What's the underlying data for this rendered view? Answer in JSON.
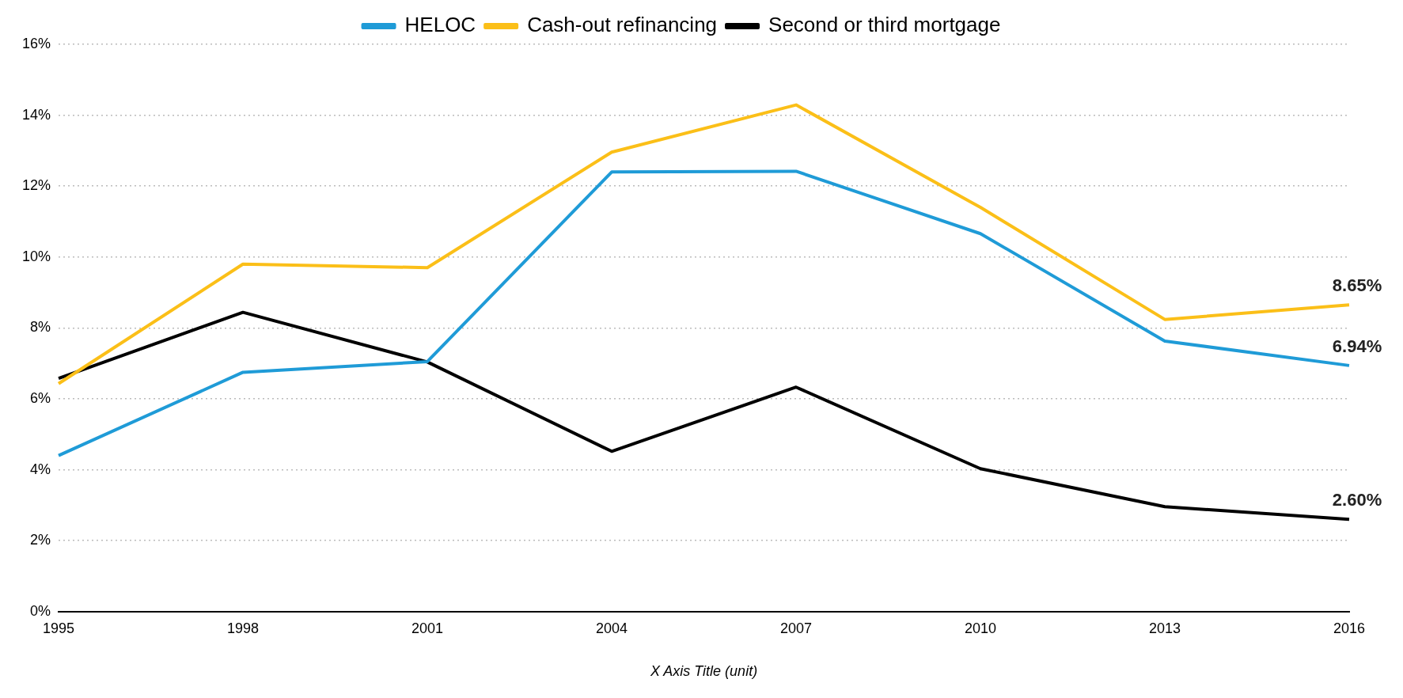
{
  "chart_data": {
    "type": "line",
    "xlabel": "X Axis Title (unit)",
    "categories": [
      "1995",
      "1998",
      "2001",
      "2004",
      "2007",
      "2010",
      "2013",
      "2016"
    ],
    "series": [
      {
        "name": "HELOC",
        "color": "#1f9bd7",
        "values": [
          4.4,
          6.75,
          7.05,
          12.4,
          12.42,
          10.66,
          7.63,
          6.94
        ],
        "value_labels": [
          null,
          null,
          null,
          null,
          null,
          null,
          null,
          "6.94%"
        ]
      },
      {
        "name": "Cash-out refinancing",
        "color": "#fbbf18",
        "values": [
          6.43,
          9.8,
          9.7,
          12.96,
          14.29,
          11.4,
          8.24,
          8.65
        ],
        "value_labels": [
          null,
          null,
          null,
          null,
          null,
          null,
          null,
          "8.65%"
        ]
      },
      {
        "name": "Second or third mortgage",
        "color": "#000000",
        "values": [
          6.58,
          8.44,
          7.04,
          4.52,
          6.33,
          4.03,
          2.96,
          2.6
        ],
        "value_labels": [
          null,
          null,
          null,
          null,
          null,
          null,
          null,
          "2.60%"
        ]
      }
    ],
    "ylim": [
      0,
      16
    ],
    "yticks": [
      {
        "value": 0,
        "label": "0%"
      },
      {
        "value": 2,
        "label": "2%"
      },
      {
        "value": 4,
        "label": "4%"
      },
      {
        "value": 6,
        "label": "6%"
      },
      {
        "value": 8,
        "label": "8%"
      },
      {
        "value": 10,
        "label": "10%"
      },
      {
        "value": 12,
        "label": "12%"
      },
      {
        "value": 14,
        "label": "14%"
      },
      {
        "value": 16,
        "label": "16%"
      }
    ],
    "grid": "y",
    "legend": "top",
    "marker": "none",
    "line_style": "solid"
  }
}
